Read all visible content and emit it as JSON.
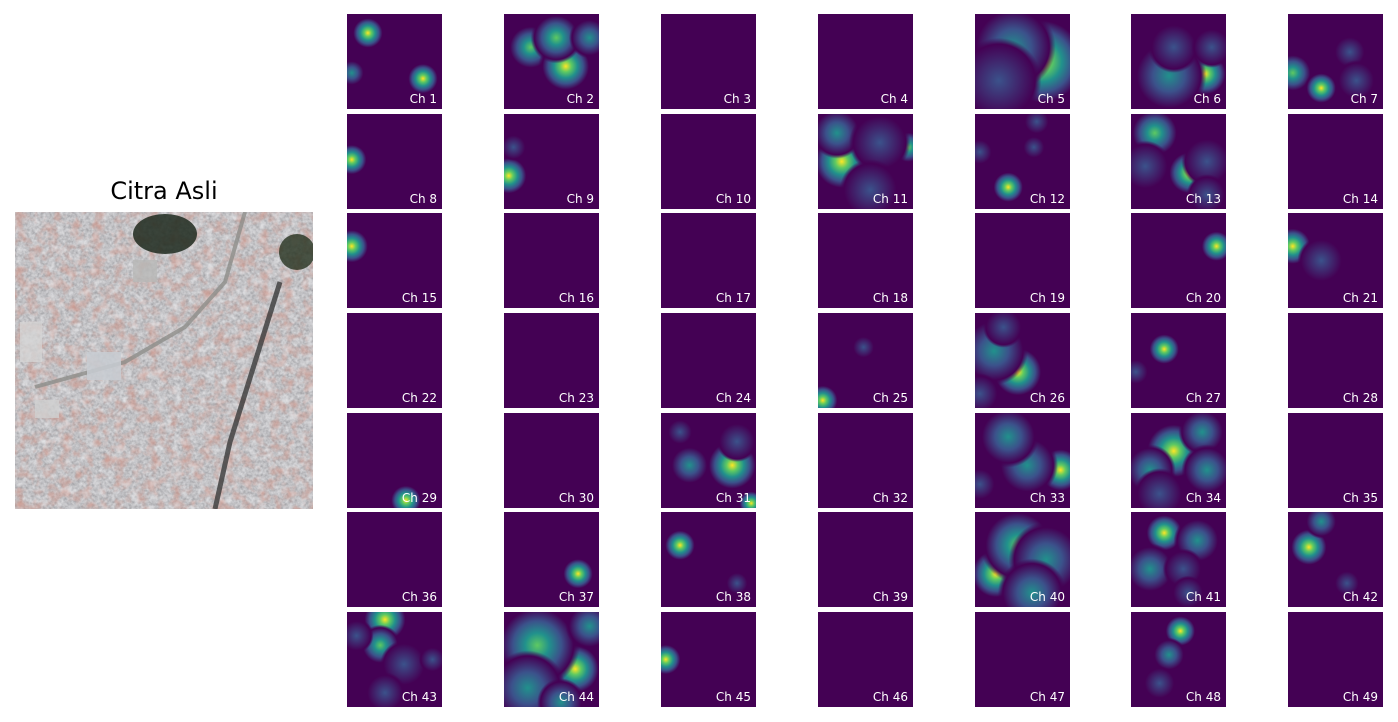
{
  "chart_data": {
    "type": "heatmap",
    "title": "Citra Asli",
    "image_panel": {
      "title": "Citra Asli",
      "content": "aerial photo of dense urban settlement"
    },
    "colormap": "viridis",
    "grid": {
      "rows": 7,
      "cols": 7
    },
    "channels": [
      {
        "label": "Ch 1",
        "blobs": [
          [
            0.22,
            0.2,
            0.1,
            1.0
          ],
          [
            0.8,
            0.68,
            0.1,
            1.0
          ],
          [
            0.05,
            0.62,
            0.08,
            0.5
          ]
        ]
      },
      {
        "label": "Ch 2",
        "blobs": [
          [
            0.28,
            0.35,
            0.14,
            0.9
          ],
          [
            0.65,
            0.55,
            0.16,
            1.0
          ],
          [
            0.55,
            0.25,
            0.15,
            0.8
          ],
          [
            0.9,
            0.25,
            0.12,
            0.6
          ]
        ]
      },
      {
        "label": "Ch 3",
        "blobs": []
      },
      {
        "label": "Ch 4",
        "blobs": []
      },
      {
        "label": "Ch 5",
        "blobs": [
          [
            0.7,
            0.5,
            0.28,
            1.0
          ],
          [
            0.4,
            0.35,
            0.25,
            0.55
          ],
          [
            0.25,
            0.7,
            0.25,
            0.45
          ]
        ]
      },
      {
        "label": "Ch 6",
        "blobs": [
          [
            0.78,
            0.63,
            0.14,
            1.0
          ],
          [
            0.4,
            0.65,
            0.22,
            0.6
          ],
          [
            0.45,
            0.35,
            0.15,
            0.35
          ],
          [
            0.85,
            0.35,
            0.12,
            0.35
          ]
        ]
      },
      {
        "label": "Ch 7",
        "blobs": [
          [
            0.05,
            0.62,
            0.12,
            0.9
          ],
          [
            0.35,
            0.78,
            0.1,
            1.0
          ],
          [
            0.65,
            0.4,
            0.1,
            0.4
          ],
          [
            0.72,
            0.7,
            0.12,
            0.4
          ]
        ]
      },
      {
        "label": "Ch 8",
        "blobs": [
          [
            0.05,
            0.48,
            0.1,
            1.0
          ],
          [
            0.5,
            0.2,
            0.08,
            0.15
          ]
        ]
      },
      {
        "label": "Ch 9",
        "blobs": [
          [
            0.05,
            0.65,
            0.12,
            1.0
          ],
          [
            0.1,
            0.35,
            0.08,
            0.3
          ]
        ]
      },
      {
        "label": "Ch 10",
        "blobs": []
      },
      {
        "label": "Ch 11",
        "blobs": [
          [
            0.25,
            0.5,
            0.18,
            1.0
          ],
          [
            0.95,
            0.35,
            0.1,
            0.9
          ],
          [
            0.2,
            0.2,
            0.15,
            0.5
          ],
          [
            0.65,
            0.3,
            0.18,
            0.45
          ],
          [
            0.55,
            0.8,
            0.18,
            0.4
          ]
        ]
      },
      {
        "label": "Ch 12",
        "blobs": [
          [
            0.35,
            0.77,
            0.1,
            1.0
          ],
          [
            0.65,
            0.08,
            0.08,
            0.4
          ],
          [
            0.62,
            0.35,
            0.07,
            0.3
          ],
          [
            0.05,
            0.4,
            0.08,
            0.3
          ]
        ]
      },
      {
        "label": "Ch 13",
        "blobs": [
          [
            0.25,
            0.2,
            0.15,
            0.9
          ],
          [
            0.62,
            0.62,
            0.14,
            1.0
          ],
          [
            0.8,
            0.5,
            0.15,
            0.45
          ],
          [
            0.15,
            0.55,
            0.15,
            0.35
          ],
          [
            0.8,
            0.85,
            0.12,
            0.35
          ]
        ]
      },
      {
        "label": "Ch 14",
        "blobs": []
      },
      {
        "label": "Ch 15",
        "blobs": [
          [
            0.05,
            0.35,
            0.11,
            1.0
          ]
        ]
      },
      {
        "label": "Ch 16",
        "blobs": []
      },
      {
        "label": "Ch 17",
        "blobs": []
      },
      {
        "label": "Ch 18",
        "blobs": []
      },
      {
        "label": "Ch 19",
        "blobs": []
      },
      {
        "label": "Ch 20",
        "blobs": [
          [
            0.9,
            0.35,
            0.1,
            1.0
          ]
        ]
      },
      {
        "label": "Ch 21",
        "blobs": [
          [
            0.05,
            0.35,
            0.12,
            1.0
          ],
          [
            0.35,
            0.5,
            0.14,
            0.45
          ]
        ]
      },
      {
        "label": "Ch 22",
        "blobs": []
      },
      {
        "label": "Ch 23",
        "blobs": []
      },
      {
        "label": "Ch 24",
        "blobs": []
      },
      {
        "label": "Ch 25",
        "blobs": [
          [
            0.05,
            0.92,
            0.1,
            1.0
          ],
          [
            0.48,
            0.36,
            0.07,
            0.3
          ]
        ]
      },
      {
        "label": "Ch 26",
        "blobs": [
          [
            0.45,
            0.62,
            0.16,
            1.0
          ],
          [
            0.2,
            0.4,
            0.2,
            0.7
          ],
          [
            0.3,
            0.15,
            0.12,
            0.4
          ],
          [
            0.05,
            0.85,
            0.12,
            0.4
          ]
        ]
      },
      {
        "label": "Ch 27",
        "blobs": [
          [
            0.35,
            0.38,
            0.1,
            1.0
          ],
          [
            0.05,
            0.62,
            0.08,
            0.3
          ]
        ]
      },
      {
        "label": "Ch 28",
        "blobs": []
      },
      {
        "label": "Ch 29",
        "blobs": [
          [
            0.62,
            0.92,
            0.1,
            1.0
          ]
        ]
      },
      {
        "label": "Ch 30",
        "blobs": []
      },
      {
        "label": "Ch 31",
        "blobs": [
          [
            0.75,
            0.55,
            0.16,
            1.0
          ],
          [
            0.95,
            0.95,
            0.08,
            1.0
          ],
          [
            0.3,
            0.55,
            0.12,
            0.5
          ],
          [
            0.2,
            0.2,
            0.08,
            0.35
          ],
          [
            0.8,
            0.3,
            0.12,
            0.35
          ]
        ]
      },
      {
        "label": "Ch 32",
        "blobs": []
      },
      {
        "label": "Ch 33",
        "blobs": [
          [
            0.9,
            0.6,
            0.14,
            1.0
          ],
          [
            0.55,
            0.55,
            0.18,
            0.7
          ],
          [
            0.35,
            0.25,
            0.18,
            0.5
          ],
          [
            0.05,
            0.75,
            0.1,
            0.35
          ]
        ]
      },
      {
        "label": "Ch 34",
        "blobs": [
          [
            0.45,
            0.4,
            0.18,
            1.0
          ],
          [
            0.2,
            0.6,
            0.15,
            0.7
          ],
          [
            0.75,
            0.2,
            0.14,
            0.55
          ],
          [
            0.8,
            0.6,
            0.15,
            0.5
          ],
          [
            0.3,
            0.85,
            0.15,
            0.45
          ]
        ]
      },
      {
        "label": "Ch 35",
        "blobs": []
      },
      {
        "label": "Ch 36",
        "blobs": []
      },
      {
        "label": "Ch 37",
        "blobs": [
          [
            0.78,
            0.65,
            0.1,
            1.0
          ]
        ]
      },
      {
        "label": "Ch 38",
        "blobs": [
          [
            0.2,
            0.35,
            0.1,
            1.0
          ],
          [
            0.8,
            0.75,
            0.07,
            0.3
          ]
        ]
      },
      {
        "label": "Ch 39",
        "blobs": []
      },
      {
        "label": "Ch 40",
        "blobs": [
          [
            0.22,
            0.65,
            0.16,
            1.0
          ],
          [
            0.45,
            0.35,
            0.22,
            0.8
          ],
          [
            0.75,
            0.5,
            0.22,
            0.55
          ],
          [
            0.6,
            0.85,
            0.2,
            0.5
          ]
        ]
      },
      {
        "label": "Ch 41",
        "blobs": [
          [
            0.35,
            0.22,
            0.12,
            1.0
          ],
          [
            0.7,
            0.3,
            0.14,
            0.6
          ],
          [
            0.2,
            0.6,
            0.15,
            0.5
          ],
          [
            0.55,
            0.6,
            0.12,
            0.4
          ],
          [
            0.6,
            0.85,
            0.1,
            0.3
          ]
        ]
      },
      {
        "label": "Ch 42",
        "blobs": [
          [
            0.22,
            0.37,
            0.12,
            1.0
          ],
          [
            0.35,
            0.1,
            0.1,
            0.6
          ],
          [
            0.62,
            0.75,
            0.08,
            0.45
          ]
        ]
      },
      {
        "label": "Ch 43",
        "blobs": [
          [
            0.4,
            0.08,
            0.14,
            1.0
          ],
          [
            0.35,
            0.35,
            0.12,
            0.9
          ],
          [
            0.1,
            0.25,
            0.1,
            0.4
          ],
          [
            0.6,
            0.55,
            0.14,
            0.45
          ],
          [
            0.9,
            0.5,
            0.08,
            0.3
          ],
          [
            0.4,
            0.85,
            0.12,
            0.3
          ]
        ]
      },
      {
        "label": "Ch 44",
        "blobs": [
          [
            0.75,
            0.6,
            0.16,
            1.0
          ],
          [
            0.35,
            0.35,
            0.25,
            0.75
          ],
          [
            0.25,
            0.8,
            0.22,
            0.65
          ],
          [
            0.9,
            0.15,
            0.14,
            0.55
          ],
          [
            0.6,
            0.95,
            0.14,
            0.55
          ]
        ]
      },
      {
        "label": "Ch 45",
        "blobs": [
          [
            0.05,
            0.5,
            0.1,
            1.0
          ]
        ]
      },
      {
        "label": "Ch 46",
        "blobs": []
      },
      {
        "label": "Ch 47",
        "blobs": []
      },
      {
        "label": "Ch 48",
        "blobs": [
          [
            0.52,
            0.2,
            0.1,
            1.0
          ],
          [
            0.4,
            0.45,
            0.1,
            0.5
          ],
          [
            0.3,
            0.75,
            0.1,
            0.3
          ]
        ]
      },
      {
        "label": "Ch 49",
        "blobs": []
      }
    ]
  }
}
